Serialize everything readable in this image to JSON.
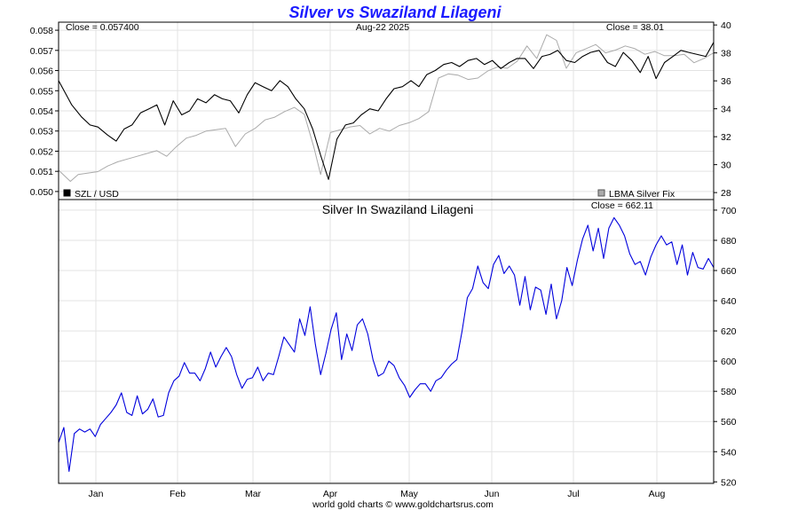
{
  "title": "Silver vs Swaziland Lilageni",
  "footer": "world gold charts © www.goldchartsrus.com",
  "colors": {
    "title": "#1a1aff",
    "szl_line": "#000000",
    "lbma_line": "#aaaaaa",
    "silver_szl_line": "#0000dd",
    "grid": "#e3e3e3"
  },
  "x_months": [
    "Jan",
    "Feb",
    "Mar",
    "Apr",
    "May",
    "Jun",
    "Jul",
    "Aug"
  ],
  "chart_data": [
    {
      "type": "line",
      "panel": "top",
      "annotations": {
        "close_left": "Close = 0.057400",
        "date": "Aug-22  2025",
        "close_right": "Close = 38.01"
      },
      "legend_left": "SZL / USD",
      "legend_right": "LBMA Silver Fix",
      "y_left": {
        "ticks": [
          "0.050",
          "0.051",
          "0.052",
          "0.053",
          "0.054",
          "0.055",
          "0.056",
          "0.057",
          "0.058"
        ],
        "range": [
          0.0496,
          0.0584
        ]
      },
      "y_right": {
        "ticks": [
          "28",
          "30",
          "32",
          "34",
          "36",
          "38",
          "40"
        ],
        "range": [
          27.5,
          40.2
        ]
      },
      "x_range": [
        0,
        1
      ],
      "series": [
        {
          "name": "SZL / USD",
          "axis": "left",
          "x": [
            0.0,
            0.02,
            0.035,
            0.048,
            0.06,
            0.075,
            0.088,
            0.1,
            0.112,
            0.125,
            0.138,
            0.15,
            0.162,
            0.175,
            0.188,
            0.2,
            0.212,
            0.225,
            0.238,
            0.25,
            0.262,
            0.275,
            0.288,
            0.3,
            0.312,
            0.325,
            0.338,
            0.35,
            0.362,
            0.375,
            0.388,
            0.4,
            0.412,
            0.425,
            0.438,
            0.45,
            0.462,
            0.475,
            0.488,
            0.5,
            0.512,
            0.525,
            0.538,
            0.55,
            0.562,
            0.575,
            0.588,
            0.6,
            0.612,
            0.625,
            0.638,
            0.65,
            0.662,
            0.675,
            0.688,
            0.7,
            0.712,
            0.725,
            0.738,
            0.75,
            0.762,
            0.775,
            0.788,
            0.8,
            0.812,
            0.825,
            0.838,
            0.85,
            0.862,
            0.875,
            0.888,
            0.9,
            0.912,
            0.925,
            0.938,
            0.95,
            0.962,
            0.975,
            0.988,
            1.0
          ],
          "values": [
            0.0555,
            0.0543,
            0.0537,
            0.0533,
            0.0532,
            0.0528,
            0.0525,
            0.0531,
            0.0533,
            0.0539,
            0.0541,
            0.0543,
            0.0533,
            0.0545,
            0.0538,
            0.054,
            0.0546,
            0.0544,
            0.0548,
            0.0546,
            0.0545,
            0.0539,
            0.0548,
            0.0554,
            0.0552,
            0.055,
            0.0555,
            0.0552,
            0.0546,
            0.0541,
            0.0531,
            0.0518,
            0.0506,
            0.0526,
            0.0533,
            0.0534,
            0.0538,
            0.0541,
            0.054,
            0.0546,
            0.0551,
            0.0552,
            0.0555,
            0.0552,
            0.0558,
            0.056,
            0.0563,
            0.0564,
            0.0562,
            0.0565,
            0.0566,
            0.0563,
            0.0565,
            0.0561,
            0.0564,
            0.0566,
            0.0566,
            0.0561,
            0.0567,
            0.0568,
            0.057,
            0.0565,
            0.0564,
            0.0567,
            0.0569,
            0.057,
            0.0564,
            0.0562,
            0.0569,
            0.0565,
            0.0559,
            0.0567,
            0.0556,
            0.0564,
            0.0567,
            0.057,
            0.0569,
            0.0568,
            0.0567,
            0.0574
          ]
        },
        {
          "name": "LBMA Silver Fix",
          "axis": "right",
          "x": [
            0.0,
            0.018,
            0.03,
            0.045,
            0.06,
            0.075,
            0.09,
            0.105,
            0.12,
            0.135,
            0.15,
            0.165,
            0.18,
            0.195,
            0.21,
            0.225,
            0.24,
            0.255,
            0.27,
            0.285,
            0.3,
            0.315,
            0.33,
            0.345,
            0.36,
            0.375,
            0.39,
            0.4,
            0.415,
            0.43,
            0.445,
            0.46,
            0.475,
            0.49,
            0.505,
            0.52,
            0.535,
            0.55,
            0.565,
            0.58,
            0.595,
            0.61,
            0.625,
            0.64,
            0.655,
            0.67,
            0.685,
            0.7,
            0.715,
            0.73,
            0.745,
            0.76,
            0.775,
            0.79,
            0.805,
            0.82,
            0.835,
            0.85,
            0.865,
            0.88,
            0.895,
            0.91,
            0.925,
            0.94,
            0.955,
            0.97,
            0.985,
            1.0
          ],
          "values": [
            29.6,
            28.8,
            29.3,
            29.4,
            29.5,
            29.9,
            30.2,
            30.4,
            30.6,
            30.8,
            31.0,
            30.6,
            31.3,
            31.9,
            32.1,
            32.4,
            32.5,
            32.6,
            31.3,
            32.2,
            32.6,
            33.2,
            33.4,
            33.8,
            34.1,
            33.6,
            31.2,
            29.3,
            32.3,
            32.5,
            32.7,
            32.8,
            32.2,
            32.6,
            32.4,
            32.8,
            33.0,
            33.3,
            33.8,
            36.2,
            36.5,
            36.4,
            36.1,
            36.2,
            36.7,
            37.0,
            36.9,
            37.4,
            38.5,
            37.6,
            39.3,
            38.9,
            36.9,
            38.0,
            38.3,
            38.6,
            38.0,
            38.2,
            38.5,
            38.3,
            37.9,
            38.1,
            37.8,
            37.8,
            37.9,
            37.3,
            37.6,
            38.0
          ]
        }
      ]
    },
    {
      "type": "line",
      "panel": "bottom",
      "title": "Silver In Swaziland Lilageni",
      "annotations": {
        "close_right": "Close = 662.11"
      },
      "y_right": {
        "ticks": [
          "520",
          "540",
          "560",
          "580",
          "600",
          "620",
          "640",
          "660",
          "680",
          "700"
        ],
        "range": [
          519,
          707
        ]
      },
      "x_range": [
        0,
        1
      ],
      "series": [
        {
          "name": "Silver In Swaziland Lilageni",
          "axis": "right",
          "x": [
            0.0,
            0.008,
            0.016,
            0.024,
            0.032,
            0.04,
            0.048,
            0.056,
            0.064,
            0.072,
            0.08,
            0.088,
            0.096,
            0.104,
            0.112,
            0.12,
            0.128,
            0.136,
            0.144,
            0.152,
            0.16,
            0.168,
            0.176,
            0.184,
            0.192,
            0.2,
            0.208,
            0.216,
            0.224,
            0.232,
            0.24,
            0.248,
            0.256,
            0.264,
            0.272,
            0.28,
            0.288,
            0.296,
            0.304,
            0.312,
            0.32,
            0.328,
            0.336,
            0.344,
            0.352,
            0.36,
            0.368,
            0.376,
            0.384,
            0.392,
            0.4,
            0.408,
            0.416,
            0.424,
            0.432,
            0.44,
            0.448,
            0.456,
            0.464,
            0.472,
            0.48,
            0.488,
            0.496,
            0.504,
            0.512,
            0.52,
            0.528,
            0.536,
            0.544,
            0.552,
            0.56,
            0.568,
            0.576,
            0.584,
            0.592,
            0.6,
            0.608,
            0.616,
            0.624,
            0.632,
            0.64,
            0.648,
            0.656,
            0.664,
            0.672,
            0.68,
            0.688,
            0.696,
            0.704,
            0.712,
            0.72,
            0.728,
            0.736,
            0.744,
            0.752,
            0.76,
            0.768,
            0.776,
            0.784,
            0.792,
            0.8,
            0.808,
            0.816,
            0.824,
            0.832,
            0.84,
            0.848,
            0.856,
            0.864,
            0.872,
            0.88,
            0.888,
            0.896,
            0.904,
            0.912,
            0.92,
            0.928,
            0.936,
            0.944,
            0.952,
            0.96,
            0.968,
            0.976,
            0.984,
            0.992,
            1.0
          ],
          "values": [
            546,
            556,
            527,
            552,
            555,
            553,
            555,
            550,
            558,
            562,
            566,
            571,
            579,
            566,
            564,
            577,
            565,
            568,
            575,
            563,
            564,
            579,
            587,
            590,
            599,
            592,
            592,
            587,
            595,
            606,
            596,
            603,
            609,
            603,
            591,
            582,
            588,
            589,
            596,
            587,
            592,
            591,
            603,
            616,
            611,
            606,
            628,
            617,
            636,
            611,
            591,
            605,
            621,
            632,
            601,
            618,
            607,
            624,
            628,
            618,
            601,
            590,
            592,
            600,
            597,
            589,
            584,
            576,
            581,
            585,
            585,
            580,
            587,
            589,
            594,
            598,
            601,
            620,
            642,
            648,
            663,
            652,
            648,
            664,
            670,
            658,
            663,
            657,
            637,
            656,
            634,
            649,
            647,
            631,
            651,
            628,
            640,
            662,
            650,
            667,
            681,
            690,
            673,
            688,
            668,
            688,
            695,
            690,
            683,
            671,
            664,
            666,
            657,
            669,
            677,
            683,
            677,
            679,
            664,
            677,
            657,
            672,
            662,
            661,
            668,
            662
          ]
        }
      ]
    }
  ]
}
